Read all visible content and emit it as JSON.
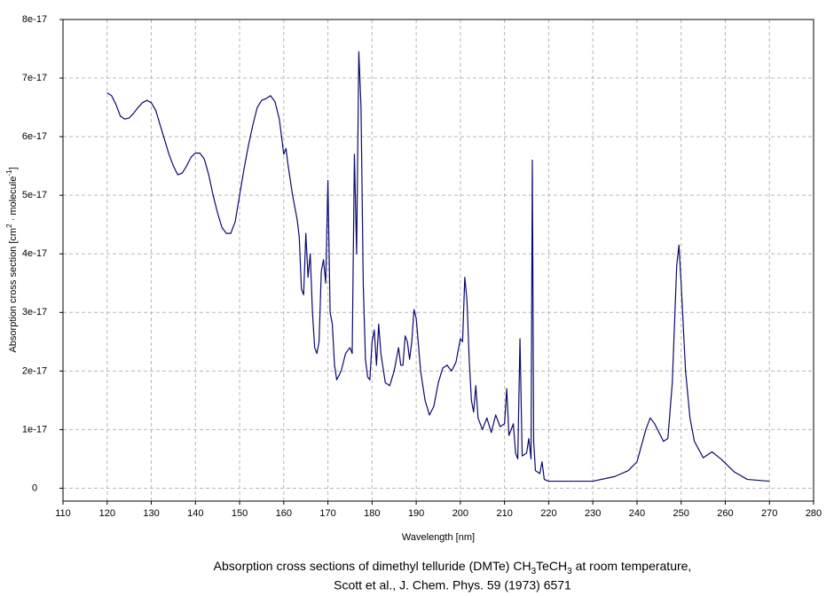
{
  "chart_data": {
    "type": "line",
    "title": [
      "Absorption cross sections of dimethyl telluride (DMTe) CH",
      "3",
      "TeCH",
      "3",
      " at room temperature,"
    ],
    "subtitle": "Scott et al., J. Chem. Phys. 59 (1973) 6571",
    "xlabel": "Wavelength [nm]",
    "ylabel": [
      "Absorption cross section [cm",
      "2",
      " · molecule",
      "-1",
      "]"
    ],
    "color": "#0a0a6e",
    "grid": true,
    "xlim": [
      110,
      280
    ],
    "xticks": [
      110,
      120,
      130,
      140,
      150,
      160,
      170,
      180,
      190,
      200,
      210,
      220,
      230,
      240,
      250,
      260,
      270,
      280
    ],
    "ylim": [
      -2.2e-18,
      8e-17
    ],
    "yticks": [
      0,
      1e-17,
      2e-17,
      3e-17,
      4e-17,
      5e-17,
      6e-17,
      7e-17,
      8e-17
    ],
    "x": [
      120,
      121,
      122,
      123,
      124,
      125,
      126,
      127,
      128,
      129,
      130,
      131,
      132,
      133,
      134,
      135,
      136,
      137,
      138,
      139,
      140,
      141,
      142,
      143,
      144,
      145,
      146,
      147,
      148,
      149,
      150,
      151,
      152,
      153,
      154,
      155,
      156,
      157,
      158,
      159,
      160,
      160.5,
      161,
      162,
      163,
      163.5,
      164,
      164.5,
      165,
      165.5,
      166,
      166.5,
      167,
      167.5,
      168,
      168.5,
      169,
      169.5,
      170,
      170.5,
      171,
      171.5,
      172,
      173,
      174,
      175,
      175.5,
      176,
      176.5,
      177,
      177.5,
      178,
      178.5,
      179,
      179.5,
      180,
      180.5,
      181,
      181.5,
      182,
      183,
      184,
      185,
      186,
      186.5,
      187,
      187.5,
      188,
      188.5,
      189,
      189.5,
      190,
      191,
      192,
      193,
      194,
      195,
      196,
      197,
      198,
      199,
      200,
      200.5,
      201,
      201.5,
      202,
      202.5,
      203,
      203.5,
      204,
      205,
      206,
      207,
      208,
      209,
      210,
      210.5,
      211,
      212,
      212.5,
      213,
      213.5,
      214,
      215,
      215.5,
      216,
      216.3,
      216.6,
      217,
      218,
      218.5,
      219,
      220,
      230,
      235,
      238,
      240,
      242,
      243,
      244,
      246,
      247,
      248,
      249,
      249.5,
      250,
      251,
      252,
      253,
      255,
      257,
      259,
      262,
      265,
      270
    ],
    "values": [
      6.75e-17,
      6.7e-17,
      6.55e-17,
      6.35e-17,
      6.3e-17,
      6.32e-17,
      6.4e-17,
      6.5e-17,
      6.58e-17,
      6.62e-17,
      6.58e-17,
      6.45e-17,
      6.2e-17,
      5.95e-17,
      5.7e-17,
      5.5e-17,
      5.35e-17,
      5.38e-17,
      5.5e-17,
      5.65e-17,
      5.72e-17,
      5.72e-17,
      5.62e-17,
      5.35e-17,
      5e-17,
      4.7e-17,
      4.45e-17,
      4.35e-17,
      4.35e-17,
      4.55e-17,
      5e-17,
      5.45e-17,
      5.85e-17,
      6.2e-17,
      6.5e-17,
      6.62e-17,
      6.65e-17,
      6.7e-17,
      6.6e-17,
      6.3e-17,
      5.7e-17,
      5.8e-17,
      5.5e-17,
      5e-17,
      4.6e-17,
      4.3e-17,
      3.4e-17,
      3.3e-17,
      4.35e-17,
      3.6e-17,
      4e-17,
      3e-17,
      2.4e-17,
      2.3e-17,
      2.5e-17,
      3.7e-17,
      3.9e-17,
      3.5e-17,
      5.25e-17,
      3e-17,
      2.8e-17,
      2.1e-17,
      1.85e-17,
      2e-17,
      2.3e-17,
      2.4e-17,
      2.3e-17,
      5.7e-17,
      4e-17,
      7.45e-17,
      6.5e-17,
      3.5e-17,
      2.2e-17,
      1.9e-17,
      1.85e-17,
      2.5e-17,
      2.7e-17,
      2.1e-17,
      2.8e-17,
      2.3e-17,
      1.8e-17,
      1.75e-17,
      2e-17,
      2.4e-17,
      2.1e-17,
      2.1e-17,
      2.6e-17,
      2.5e-17,
      2.2e-17,
      2.5e-17,
      3.05e-17,
      2.9e-17,
      2e-17,
      1.5e-17,
      1.25e-17,
      1.4e-17,
      1.8e-17,
      2.05e-17,
      2.1e-17,
      2e-17,
      2.15e-17,
      2.55e-17,
      2.5e-17,
      3.6e-17,
      3.2e-17,
      2.2e-17,
      1.5e-17,
      1.3e-17,
      1.75e-17,
      1.2e-17,
      1e-17,
      1.2e-17,
      9.5e-18,
      1.25e-17,
      1.05e-17,
      1.1e-17,
      1.7e-17,
      9e-18,
      1.1e-17,
      6e-18,
      5e-18,
      2.55e-17,
      5.5e-18,
      6e-18,
      8.5e-18,
      5e-18,
      5.6e-17,
      8e-18,
      3e-18,
      2.5e-18,
      4.5e-18,
      1.5e-18,
      1.2e-18,
      1.2e-18,
      2e-18,
      3e-18,
      4.5e-18,
      1e-17,
      1.2e-17,
      1.1e-17,
      8e-18,
      8.5e-18,
      1.8e-17,
      3.8e-17,
      4.15e-17,
      3.5e-17,
      2e-17,
      1.2e-17,
      8e-18,
      5.2e-18,
      6.2e-18,
      5e-18,
      2.8e-18,
      1.5e-18,
      1.2e-18
    ]
  }
}
